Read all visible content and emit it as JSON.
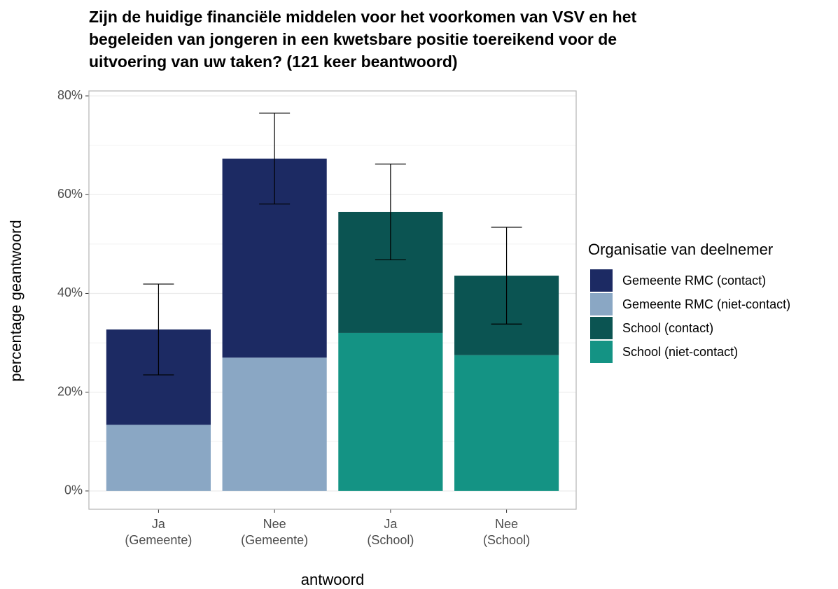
{
  "chart_data": {
    "type": "stacked_bar",
    "title": [
      "Zijn de huidige financiële middelen voor het voorkomen van VSV en het",
      "begeleiden van jongeren in een kwetsbare positie toereikend voor de",
      "uitvoering van uw taken? (121 keer beantwoord)"
    ],
    "x_label": "antwoord",
    "y_label": "percentage geantwoord",
    "legend_title": "Organisatie van deelnemer",
    "legend_position": "right",
    "categories": [
      [
        "Ja",
        "(Gemeente)"
      ],
      [
        "Nee",
        "(Gemeente)"
      ],
      [
        "Ja",
        "(School)"
      ],
      [
        "Nee",
        "(School)"
      ]
    ],
    "series": [
      {
        "name": "Gemeente RMC (niet-contact)",
        "color": "#8aa7c4",
        "values": [
          13.4,
          27.0,
          null,
          null
        ]
      },
      {
        "name": "Gemeente RMC (contact)",
        "color": "#1c2a63",
        "values": [
          19.3,
          40.3,
          null,
          null
        ],
        "error": [
          9.2,
          9.2,
          null,
          null
        ]
      },
      {
        "name": "School (niet-contact)",
        "color": "#149384",
        "values": [
          null,
          null,
          32.0,
          27.5
        ]
      },
      {
        "name": "School (contact)",
        "color": "#0b5452",
        "values": [
          null,
          null,
          24.5,
          16.1
        ],
        "error": [
          null,
          null,
          9.7,
          9.8
        ]
      }
    ],
    "legend_order": [
      1,
      0,
      3,
      2
    ],
    "ylim": [
      -3.7,
      81
    ],
    "yticks": [
      {
        "value": 0,
        "label": "0%"
      },
      {
        "value": 20,
        "label": "20%"
      },
      {
        "value": 40,
        "label": "40%"
      },
      {
        "value": 60,
        "label": "60%"
      },
      {
        "value": 80,
        "label": "80%"
      }
    ],
    "minor_yticks": [
      10,
      30,
      50,
      70
    ],
    "grid": true
  }
}
